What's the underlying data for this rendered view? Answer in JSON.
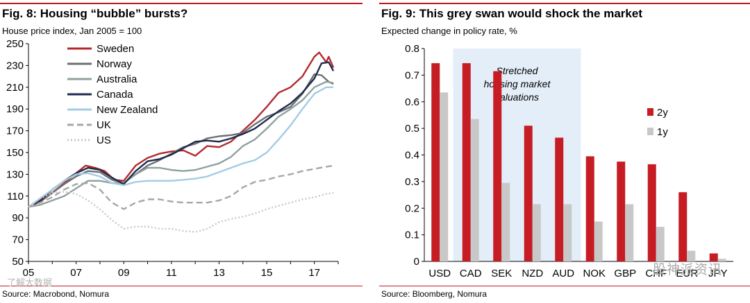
{
  "left": {
    "title": "Fig. 8: Housing “bubble” bursts?",
    "subtitle": "House price index, Jan 2005 = 100",
    "source": "Source: Macrobond, Nomura"
  },
  "right": {
    "title": "Fig. 9: This grey swan would shock the market",
    "subtitle": "Expected change in policy rate, %",
    "source": "Source: Bloomberg, Nomura"
  },
  "watermarks": {
    "left": "了解大数据",
    "right": "股神派资讯"
  },
  "chart_data": [
    {
      "type": "line",
      "title": "Fig. 8: Housing “bubble” bursts?",
      "ylabel": "House price index, Jan 2005 = 100",
      "xlabel": "",
      "x_ticks": [
        "05",
        "07",
        "09",
        "11",
        "13",
        "15",
        "17"
      ],
      "y_ticks": [
        50,
        70,
        90,
        110,
        130,
        150,
        170,
        190,
        210,
        230,
        250
      ],
      "xlim": [
        2005,
        2018
      ],
      "ylim": [
        50,
        250
      ],
      "legend_position": "top-left",
      "grid": false,
      "series": [
        {
          "name": "Sweden",
          "color": "#b3282d",
          "dash": "solid",
          "points": [
            [
              2005,
              100
            ],
            [
              2005.5,
              105
            ],
            [
              2006,
              113
            ],
            [
              2006.5,
              122
            ],
            [
              2007,
              131
            ],
            [
              2007.4,
              138
            ],
            [
              2007.8,
              136
            ],
            [
              2008.2,
              133
            ],
            [
              2008.6,
              125
            ],
            [
              2009,
              124
            ],
            [
              2009.5,
              138
            ],
            [
              2010,
              145
            ],
            [
              2010.5,
              149
            ],
            [
              2011,
              151
            ],
            [
              2011.5,
              152
            ],
            [
              2012,
              147
            ],
            [
              2012.5,
              156
            ],
            [
              2013,
              155
            ],
            [
              2013.5,
              160
            ],
            [
              2014,
              170
            ],
            [
              2014.5,
              180
            ],
            [
              2015,
              192
            ],
            [
              2015.5,
              205
            ],
            [
              2016,
              210
            ],
            [
              2016.5,
              220
            ],
            [
              2017,
              238
            ],
            [
              2017.2,
              242
            ],
            [
              2017.5,
              233
            ],
            [
              2017.6,
              238
            ],
            [
              2017.8,
              228
            ]
          ]
        },
        {
          "name": "Norway",
          "color": "#6d6e70",
          "dash": "solid",
          "points": [
            [
              2005,
              100
            ],
            [
              2005.5,
              106
            ],
            [
              2006,
              113
            ],
            [
              2006.5,
              121
            ],
            [
              2007,
              128
            ],
            [
              2007.5,
              133
            ],
            [
              2008,
              132
            ],
            [
              2008.5,
              125
            ],
            [
              2009,
              122
            ],
            [
              2009.5,
              130
            ],
            [
              2010,
              138
            ],
            [
              2010.5,
              143
            ],
            [
              2011,
              149
            ],
            [
              2011.5,
              155
            ],
            [
              2012,
              158
            ],
            [
              2012.5,
              163
            ],
            [
              2013,
              165
            ],
            [
              2013.5,
              166
            ],
            [
              2014,
              168
            ],
            [
              2014.5,
              176
            ],
            [
              2015,
              183
            ],
            [
              2015.5,
              187
            ],
            [
              2016,
              192
            ],
            [
              2016.5,
              204
            ],
            [
              2017,
              222
            ],
            [
              2017.3,
              221
            ],
            [
              2017.6,
              215
            ],
            [
              2017.8,
              213
            ]
          ]
        },
        {
          "name": "Australia",
          "color": "#8ea1a0",
          "dash": "solid",
          "points": [
            [
              2005,
              100
            ],
            [
              2005.5,
              102
            ],
            [
              2006,
              106
            ],
            [
              2006.5,
              110
            ],
            [
              2007,
              117
            ],
            [
              2007.5,
              124
            ],
            [
              2008,
              124
            ],
            [
              2008.5,
              122
            ],
            [
              2009,
              122
            ],
            [
              2009.5,
              130
            ],
            [
              2010,
              136
            ],
            [
              2010.5,
              136
            ],
            [
              2011,
              134
            ],
            [
              2011.5,
              133
            ],
            [
              2012,
              134
            ],
            [
              2012.5,
              137
            ],
            [
              2013,
              140
            ],
            [
              2013.5,
              146
            ],
            [
              2014,
              156
            ],
            [
              2014.5,
              162
            ],
            [
              2015,
              172
            ],
            [
              2015.5,
              183
            ],
            [
              2016,
              190
            ],
            [
              2016.5,
              198
            ],
            [
              2017,
              210
            ],
            [
              2017.5,
              215
            ],
            [
              2017.8,
              214
            ]
          ]
        },
        {
          "name": "Canada",
          "color": "#1d2b4c",
          "dash": "solid",
          "points": [
            [
              2005,
              100
            ],
            [
              2005.5,
              106
            ],
            [
              2006,
              116
            ],
            [
              2006.5,
              124
            ],
            [
              2007,
              131
            ],
            [
              2007.5,
              136
            ],
            [
              2008,
              134
            ],
            [
              2008.5,
              127
            ],
            [
              2009,
              121
            ],
            [
              2009.5,
              133
            ],
            [
              2010,
              142
            ],
            [
              2010.5,
              144
            ],
            [
              2011,
              148
            ],
            [
              2011.5,
              154
            ],
            [
              2012,
              160
            ],
            [
              2012.5,
              161
            ],
            [
              2013,
              160
            ],
            [
              2013.5,
              163
            ],
            [
              2014,
              167
            ],
            [
              2014.5,
              172
            ],
            [
              2015,
              180
            ],
            [
              2015.5,
              188
            ],
            [
              2016,
              195
            ],
            [
              2016.5,
              205
            ],
            [
              2017,
              218
            ],
            [
              2017.3,
              232
            ],
            [
              2017.6,
              233
            ],
            [
              2017.8,
              225
            ]
          ]
        },
        {
          "name": "New Zealand",
          "color": "#a3cbe4",
          "dash": "solid",
          "points": [
            [
              2005,
              100
            ],
            [
              2005.5,
              108
            ],
            [
              2006,
              116
            ],
            [
              2006.5,
              124
            ],
            [
              2007,
              130
            ],
            [
              2007.5,
              131
            ],
            [
              2008,
              128
            ],
            [
              2008.5,
              122
            ],
            [
              2009,
              120
            ],
            [
              2009.5,
              123
            ],
            [
              2010,
              124
            ],
            [
              2010.5,
              124
            ],
            [
              2011,
              124
            ],
            [
              2011.5,
              125
            ],
            [
              2012,
              126
            ],
            [
              2012.5,
              128
            ],
            [
              2013,
              132
            ],
            [
              2013.5,
              136
            ],
            [
              2014,
              140
            ],
            [
              2014.5,
              143
            ],
            [
              2015,
              150
            ],
            [
              2015.5,
              162
            ],
            [
              2016,
              175
            ],
            [
              2016.5,
              190
            ],
            [
              2017,
              204
            ],
            [
              2017.5,
              210
            ],
            [
              2017.8,
              210
            ]
          ]
        },
        {
          "name": "UK",
          "color": "#a6a6a6",
          "dash": "dashed",
          "points": [
            [
              2005,
              100
            ],
            [
              2005.5,
              104
            ],
            [
              2006,
              109
            ],
            [
              2006.5,
              116
            ],
            [
              2007,
              121
            ],
            [
              2007.5,
              122
            ],
            [
              2008,
              116
            ],
            [
              2008.5,
              104
            ],
            [
              2009,
              98
            ],
            [
              2009.5,
              104
            ],
            [
              2010,
              107
            ],
            [
              2010.5,
              107
            ],
            [
              2011,
              105
            ],
            [
              2011.5,
              104
            ],
            [
              2012,
              104
            ],
            [
              2012.5,
              104
            ],
            [
              2013,
              106
            ],
            [
              2013.5,
              110
            ],
            [
              2014,
              118
            ],
            [
              2014.5,
              123
            ],
            [
              2015,
              125
            ],
            [
              2015.5,
              128
            ],
            [
              2016,
              130
            ],
            [
              2016.5,
              133
            ],
            [
              2017,
              135
            ],
            [
              2017.5,
              137
            ],
            [
              2017.8,
              138
            ]
          ]
        },
        {
          "name": "US",
          "color": "#c7c7c7",
          "dash": "dotted",
          "points": [
            [
              2005,
              100
            ],
            [
              2005.5,
              108
            ],
            [
              2006,
              113
            ],
            [
              2006.5,
              114
            ],
            [
              2007,
              112
            ],
            [
              2007.5,
              106
            ],
            [
              2008,
              98
            ],
            [
              2008.5,
              88
            ],
            [
              2009,
              80
            ],
            [
              2009.5,
              82
            ],
            [
              2010,
              82
            ],
            [
              2010.5,
              80
            ],
            [
              2011,
              80
            ],
            [
              2011.5,
              78
            ],
            [
              2012,
              77
            ],
            [
              2012.5,
              80
            ],
            [
              2013,
              86
            ],
            [
              2013.5,
              89
            ],
            [
              2014,
              91
            ],
            [
              2014.5,
              94
            ],
            [
              2015,
              98
            ],
            [
              2015.5,
              101
            ],
            [
              2016,
              104
            ],
            [
              2016.5,
              107
            ],
            [
              2017,
              109
            ],
            [
              2017.5,
              112
            ],
            [
              2017.8,
              113
            ]
          ]
        }
      ]
    },
    {
      "type": "bar",
      "title": "Fig. 9: This grey swan would shock the market",
      "ylabel": "Expected change in policy rate, %",
      "xlabel": "",
      "categories": [
        "USD",
        "CAD",
        "SEK",
        "NZD",
        "AUD",
        "NOK",
        "GBP",
        "CHF",
        "EUR",
        "JPY"
      ],
      "ylim": [
        0,
        0.8
      ],
      "y_ticks": [
        "0",
        "0.1",
        "0.2",
        "0.3",
        "0.4",
        "0.5",
        "0.6",
        "0.7",
        "0.8"
      ],
      "legend_position": "right",
      "grid": false,
      "shaded_region": {
        "categories": [
          "CAD",
          "SEK",
          "NZD",
          "AUD"
        ],
        "color": "#e4eef8",
        "label": "Stretched housing market valuations"
      },
      "series": [
        {
          "name": "2y",
          "color": "#c61c24",
          "values": [
            0.745,
            0.745,
            0.715,
            0.51,
            0.465,
            0.395,
            0.375,
            0.365,
            0.26,
            0.03
          ]
        },
        {
          "name": "1y",
          "color": "#c8c8c8",
          "values": [
            0.635,
            0.535,
            0.295,
            0.215,
            0.215,
            0.15,
            0.215,
            0.13,
            0.04,
            0.01
          ]
        }
      ]
    }
  ]
}
